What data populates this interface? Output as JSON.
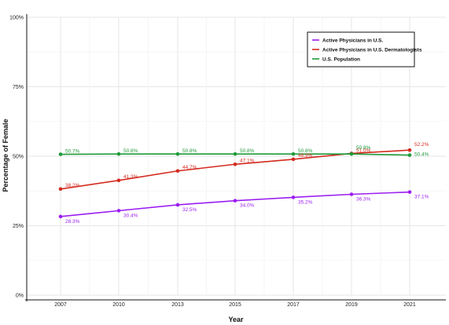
{
  "chart_data": {
    "type": "line",
    "x": [
      2007,
      2010,
      2013,
      2015,
      2017,
      2019,
      2021
    ],
    "xlabel": "Year",
    "ylabel": "Percentage of Female",
    "ylim": [
      0,
      100
    ],
    "y_ticks": [
      "0%",
      "25%",
      "50%",
      "75%",
      "100%"
    ],
    "x_ticks": [
      "2007",
      "2010",
      "2013",
      "2015",
      "2017",
      "2019",
      "2021"
    ],
    "grid": true,
    "legend_position": "top-right",
    "series": [
      {
        "name": "Active Physicians in U.S.",
        "color": "#9b1ef0",
        "values": [
          28.3,
          30.4,
          32.5,
          34.0,
          35.2,
          36.3,
          37.1
        ],
        "labels": [
          "28.3%",
          "30.4%",
          "32.5%",
          "34.0%",
          "35.2%",
          "36.3%",
          "37.1%"
        ]
      },
      {
        "name": "Active Physicians in U.S. Dermatologists",
        "color": "#d42a1e",
        "values": [
          38.2,
          41.3,
          44.7,
          47.1,
          48.9,
          51.0,
          52.2
        ],
        "labels": [
          "38.2%",
          "41.3%",
          "44.7%",
          "47.1%",
          "48.9%",
          "51.0%",
          "52.2%"
        ]
      },
      {
        "name": "U.S. Population",
        "color": "#1f9a3a",
        "values": [
          50.7,
          50.8,
          50.8,
          50.8,
          50.8,
          50.8,
          50.4
        ],
        "labels": [
          "50.7%",
          "50.8%",
          "50.8%",
          "50.8%",
          "50.8%",
          "50.8%",
          "50.4%"
        ]
      }
    ]
  }
}
